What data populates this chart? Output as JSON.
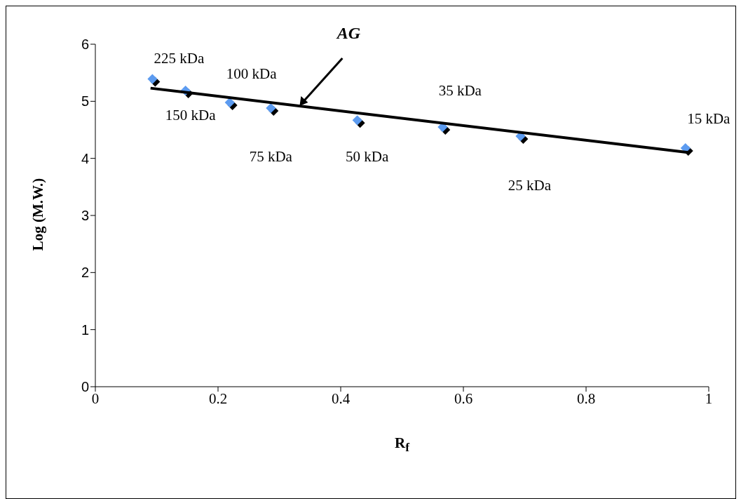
{
  "chart_data": {
    "type": "scatter",
    "xlabel": "R$_{f}$",
    "ylabel": "Log (M.W.)",
    "x": [
      0.093,
      0.147,
      0.219,
      0.286,
      0.427,
      0.566,
      0.693,
      0.962
    ],
    "series": [
      {
        "color": "#5b9bf0",
        "marker": "diamond",
        "values": [
          5.39,
          5.19,
          4.98,
          4.88,
          4.67,
          4.55,
          4.39,
          4.18
        ]
      },
      {
        "type": "line",
        "name": "AG",
        "color": "#000000",
        "marker": "none",
        "x": [
          0.09,
          0.969
        ],
        "values": [
          5.23,
          4.1
        ]
      }
    ],
    "annotations": [
      {
        "text": "225 kDa",
        "x": 0.093,
        "y": 5.39
      },
      {
        "text": "150 kDa",
        "x": 0.147,
        "y": 5.19
      },
      {
        "text": "100 kDa",
        "x": 0.219,
        "y": 4.98
      },
      {
        "text": "75 kDa",
        "x": 0.286,
        "y": 4.88
      },
      {
        "text": "50 kDa",
        "x": 0.427,
        "y": 4.67
      },
      {
        "text": "35 kDa",
        "x": 0.566,
        "y": 4.55
      },
      {
        "text": "25 kDa",
        "x": 0.693,
        "y": 4.39
      },
      {
        "text": "15 kDa",
        "x": 0.962,
        "y": 4.18
      }
    ],
    "xlim": [
      0,
      1
    ],
    "xticks": [
      0,
      0.2,
      0.4,
      0.6,
      0.8,
      1
    ],
    "ylim": [
      0,
      6
    ],
    "yticks": [
      0,
      1,
      2,
      3,
      4,
      5,
      6
    ],
    "grid": false,
    "legend": false,
    "line_style": "solid"
  }
}
